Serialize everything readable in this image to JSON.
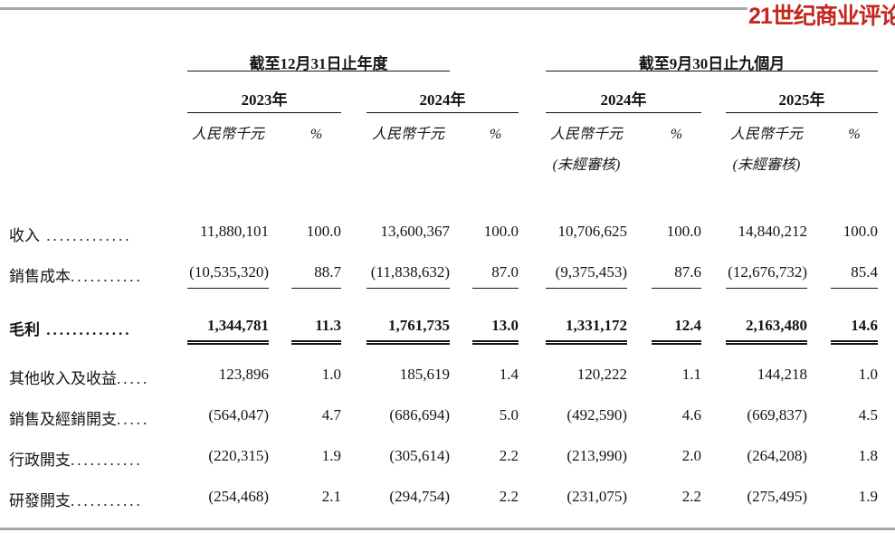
{
  "logo": {
    "text": "21世纪商业评论",
    "color": "#c5261d"
  },
  "rules": {
    "color": "#a8a8a8"
  },
  "table": {
    "groups": [
      {
        "title": "截至12月31日止年度",
        "years": [
          {
            "label": "2023年",
            "unaudited": false
          },
          {
            "label": "2024年",
            "unaudited": false
          }
        ]
      },
      {
        "title": "截至9月30日止九個月",
        "years": [
          {
            "label": "2024年",
            "unaudited": true
          },
          {
            "label": "2025年",
            "unaudited": true
          }
        ]
      }
    ],
    "labels": {
      "unit": "人民幣千元",
      "pct": "%",
      "unaudited": "(未經審核)"
    },
    "rows": [
      {
        "label": "收入",
        "leader": " .............",
        "bold": false,
        "underline": "none",
        "values": [
          "11,880,101",
          "100.0",
          "13,600,367",
          "100.0",
          "10,706,625",
          "100.0",
          "14,840,212",
          "100.0"
        ]
      },
      {
        "label": "銷售成本",
        "leader": "...........",
        "bold": false,
        "underline": "single",
        "values": [
          "(10,535,320)",
          "88.7",
          "(11,838,632)",
          "87.0",
          "(9,375,453)",
          "87.6",
          "(12,676,732)",
          "85.4"
        ]
      },
      {
        "label": "毛利",
        "leader": " .............",
        "bold": true,
        "underline": "double",
        "values": [
          "1,344,781",
          "11.3",
          "1,761,735",
          "13.0",
          "1,331,172",
          "12.4",
          "2,163,480",
          "14.6"
        ]
      },
      {
        "label": "其他收入及收益",
        "leader": ".....",
        "bold": false,
        "underline": "none",
        "values": [
          "123,896",
          "1.0",
          "185,619",
          "1.4",
          "120,222",
          "1.1",
          "144,218",
          "1.0"
        ]
      },
      {
        "label": "銷售及經銷開支",
        "leader": ".....",
        "bold": false,
        "underline": "none",
        "values": [
          "(564,047)",
          "4.7",
          "(686,694)",
          "5.0",
          "(492,590)",
          "4.6",
          "(669,837)",
          "4.5"
        ]
      },
      {
        "label": "行政開支",
        "leader": "...........",
        "bold": false,
        "underline": "none",
        "values": [
          "(220,315)",
          "1.9",
          "(305,614)",
          "2.2",
          "(213,990)",
          "2.0",
          "(264,208)",
          "1.8"
        ]
      },
      {
        "label": "研發開支",
        "leader": "...........",
        "bold": false,
        "underline": "none",
        "values": [
          "(254,468)",
          "2.1",
          "(294,754)",
          "2.2",
          "(231,075)",
          "2.2",
          "(275,495)",
          "1.9"
        ]
      }
    ]
  }
}
